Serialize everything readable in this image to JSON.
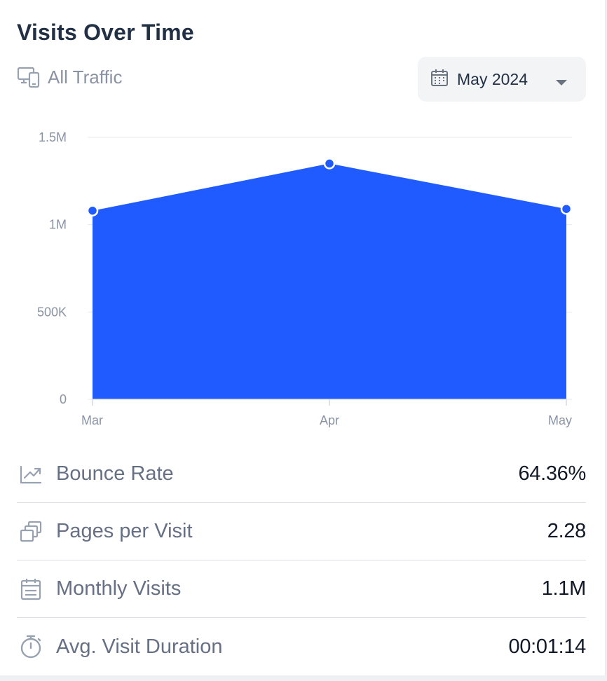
{
  "card": {
    "title": "Visits Over Time",
    "traffic_label": "All Traffic",
    "traffic_icon": "devices-icon",
    "date_picker": {
      "value": "May 2024",
      "icon": "calendar-icon",
      "caret_icon": "caret-down-icon"
    }
  },
  "colors": {
    "accent": "#1f5bff",
    "title": "#223046",
    "muted": "#8a93a3",
    "grid": "#e7e9ee"
  },
  "chart_data": {
    "type": "area",
    "categories": [
      "Mar",
      "Apr",
      "May"
    ],
    "values": [
      1080000,
      1350000,
      1090000
    ],
    "y_ticks": [
      0,
      500000,
      1000000,
      1500000
    ],
    "y_tick_labels": [
      "0",
      "500K",
      "1M",
      "1.5M"
    ],
    "ylim": [
      0,
      1500000
    ],
    "grid": true,
    "legend": "none",
    "title": "",
    "xlabel": "",
    "ylabel": ""
  },
  "metrics": [
    {
      "label": "Bounce Rate",
      "value": "64.36%",
      "icon": "trend-arrow-icon"
    },
    {
      "label": "Pages per Visit",
      "value": "2.28",
      "icon": "pages-stack-icon"
    },
    {
      "label": "Monthly Visits",
      "value": "1.1M",
      "icon": "calendar-icon"
    },
    {
      "label": "Avg. Visit Duration",
      "value": "00:01:14",
      "icon": "stopwatch-icon"
    }
  ]
}
